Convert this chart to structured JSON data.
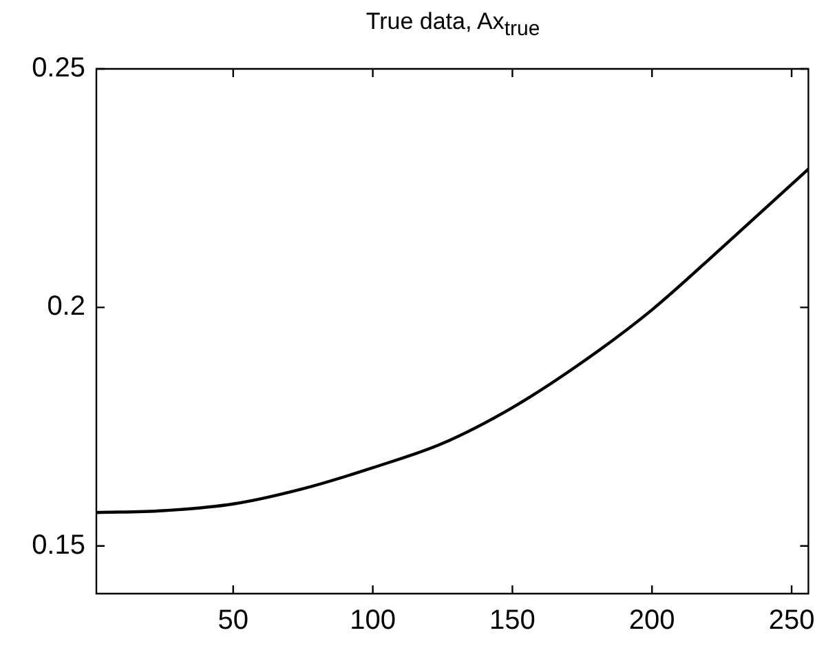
{
  "chart_data": {
    "type": "line",
    "title": "True data, Ax$_{true}$",
    "x": [
      1,
      25,
      50,
      75,
      100,
      125,
      150,
      175,
      200,
      225,
      256
    ],
    "series": [
      {
        "color": "#000000",
        "values": [
          0.157,
          0.1574,
          0.1588,
          0.162,
          0.1664,
          0.1715,
          0.179,
          0.1885,
          0.1995,
          0.2125,
          0.229
        ]
      }
    ],
    "xlim": [
      1,
      256
    ],
    "xticks": [
      50,
      100,
      150,
      200,
      250
    ],
    "ylim": [
      0.14,
      0.25
    ],
    "yticks": [
      0.15,
      0.2,
      0.25
    ],
    "grid": false,
    "legend": false,
    "marker": "none",
    "line_style": "solid"
  }
}
